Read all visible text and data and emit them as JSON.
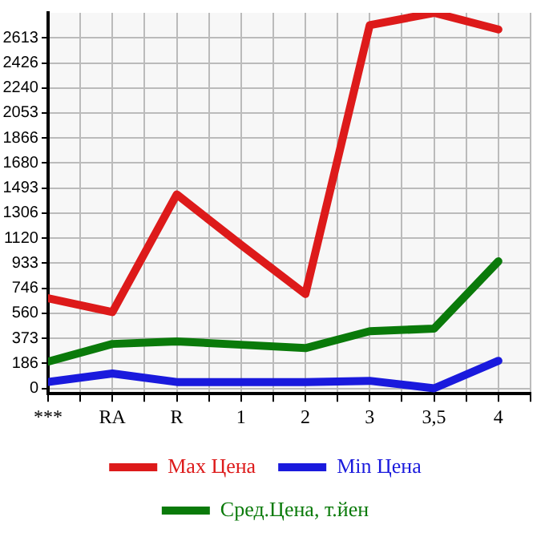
{
  "chart_data": {
    "type": "line",
    "categories": [
      "***",
      "RA",
      "R",
      "1",
      "2",
      "3",
      "3,5",
      "4"
    ],
    "series": [
      {
        "name": "Max Цена",
        "color": "#dd1a1a",
        "values": [
          672,
          568,
          1446,
          1070,
          703,
          2708,
          2800,
          2676
        ]
      },
      {
        "name": "Min Цена",
        "color": "#1a1add",
        "values": [
          47,
          111,
          47,
          47,
          47,
          56,
          0,
          205
        ]
      },
      {
        "name": "Сред.Цена, т.йен",
        "color": "#0a7a0a",
        "values": [
          199,
          331,
          350,
          325,
          300,
          426,
          445,
          947
        ]
      }
    ],
    "ylim": [
      -40,
      2800
    ],
    "yticks": [
      0,
      186,
      373,
      560,
      746,
      933,
      1120,
      1306,
      1493,
      1680,
      1866,
      2053,
      2240,
      2426,
      2613
    ],
    "grid": true,
    "legend": "bottom",
    "marker": "none",
    "line_style": "solid"
  }
}
